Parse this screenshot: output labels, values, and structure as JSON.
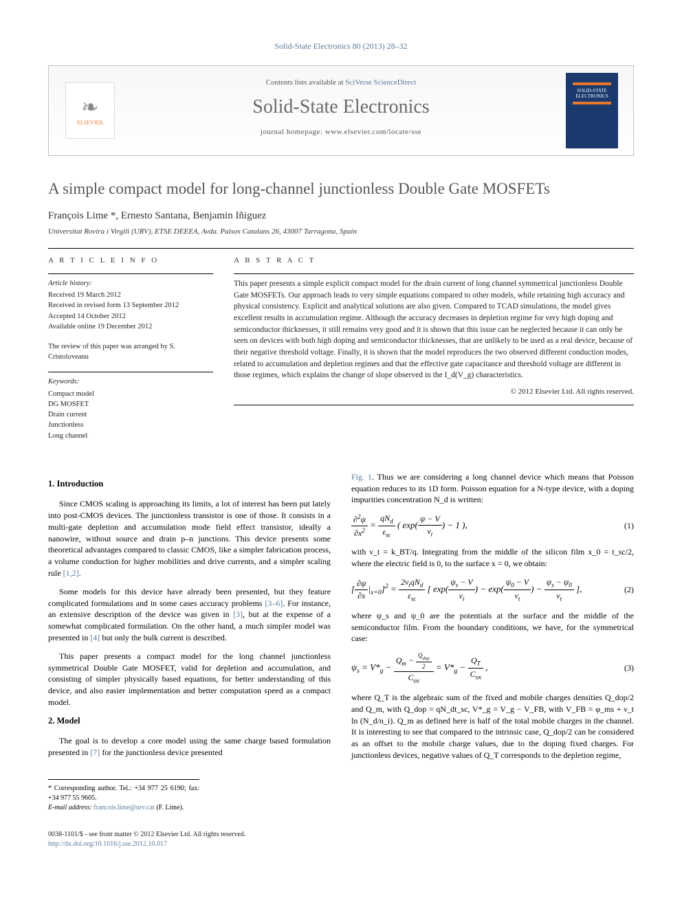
{
  "header_ref": "Solid-State Electronics 80 (2013) 28–32",
  "banner": {
    "contents_prefix": "Contents lists available at ",
    "contents_link": "SciVerse ScienceDirect",
    "journal": "Solid-State Electronics",
    "homepage_label": "journal homepage: ",
    "homepage_url": "www.elsevier.com/locate/sse",
    "publisher_name": "ELSEVIER",
    "cover_text": "SOLID-STATE ELECTRONICS"
  },
  "title": "A simple compact model for long-channel junctionless Double Gate MOSFETs",
  "authors": "François Lime *, Ernesto Santana, Benjamin Iñiguez",
  "affiliation": "Universitat Rovira i Virgili (URV), ETSE DEEEA, Avda. Països Catalans 26, 43007 Tarragona, Spain",
  "article_info": {
    "heading": "A R T I C L E   I N F O",
    "history_label": "Article history:",
    "history": [
      "Received 19 March 2012",
      "Received in revised form 13 September 2012",
      "Accepted 14 October 2012",
      "Available online 19 December 2012"
    ],
    "review_note": "The review of this paper was arranged by S. Cristoloveanu",
    "keywords_label": "Keywords:",
    "keywords": [
      "Compact model",
      "DG MOSFET",
      "Drain current",
      "Junctionless",
      "Long channel"
    ]
  },
  "abstract": {
    "heading": "A B S T R A C T",
    "text": "This paper presents a simple explicit compact model for the drain current of long channel symmetrical junctionless Double Gate MOSFETs. Our approach leads to very simple equations compared to other models, while retaining high accuracy and physical consistency. Explicit and analytical solutions are also given. Compared to TCAD simulations, the model gives excellent results in accumulation regime. Although the accuracy decreases in depletion regime for very high doping and semiconductor thicknesses, it still remains very good and it is shown that this issue can be neglected because it can only be seen on devices with both high doping and semiconductor thicknesses, that are unlikely to be used as a real device, because of their negative threshold voltage. Finally, it is shown that the model reproduces the two observed different conduction modes, related to accumulation and depletion regimes and that the effective gate capacitance and threshold voltage are different in those regimes, which explains the change of slope observed in the I_d(V_g) characteristics.",
    "copyright": "© 2012 Elsevier Ltd. All rights reserved."
  },
  "body": {
    "sec1_heading": "1. Introduction",
    "sec1_p1": "Since CMOS scaling is approaching its limits, a lot of interest has been put lately into post-CMOS devices. The junctionless transistor is one of those. It consists in a multi-gate depletion and accumulation mode field effect transistor, ideally a nanowire, without source and drain p–n junctions. This device presents some theoretical advantages compared to classic CMOS, like a simpler fabrication process, a volume conduction for higher mobilities and drive currents, and a simpler scaling rule ",
    "ref_1_2": "[1,2]",
    "sec1_p2a": "Some models for this device have already been presented, but they feature complicated formulations and in some cases accuracy problems ",
    "ref_3_6": "[3–6]",
    "sec1_p2b": ". For instance, an extensive description of the device was given in ",
    "ref_3": "[3]",
    "sec1_p2c": ", but at the expense of a somewhat complicated formulation. On the other hand, a much simpler model was presented in ",
    "ref_4": "[4]",
    "sec1_p2d": " but only the bulk current is described.",
    "sec1_p3": "This paper presents a compact model for the long channel junctionless symmetrical Double Gate MOSFET, valid for depletion and accumulation, and consisting of simpler physically based equations, for better understanding of this device, and also easier implementation and better computation speed as a compact model.",
    "sec2_heading": "2. Model",
    "sec2_p1a": "The goal is to develop a core model using the same charge based formulation presented in ",
    "ref_7": "[7]",
    "sec2_p1b": " for the junctionless device presented",
    "fig1_ref": "Fig. 1",
    "col2_intro": ". Thus we are considering a long channel device which means that Poisson equation reduces to its 1D form. Poisson equation for a N-type device, with a doping impurities concentration N_d is written:",
    "eq1_num": "(1)",
    "col2_after_eq1a": "with  ν_t = k_BT/q. Integrating from the middle of the silicon film x_0 = t_sc/2, where the electric field is 0, to the surface x = 0, we obtain:",
    "eq2_num": "(2)",
    "col2_after_eq2": "where ψ_s and ψ_0 are the potentials at the surface and the middle of the semiconductor film. From the boundary conditions, we have, for the symmetrical case:",
    "eq3_num": "(3)",
    "col2_after_eq3": "where Q_T is the algebraic sum of the fixed and mobile charges densities Q_dop/2 and Q_m, with Q_dop = qN_dt_sc, V*_g = V_g − V_FB, with V_FB = φ_ms + ν_t ln (N_d/n_i). Q_m as defined here is half of the total mobile charges in the channel. It is interesting to see that compared to the intrinsic case, Q_dop/2 can be considered as an offset to the mobile charge values, due to the doping fixed charges. For junctionless devices, negative values of Q_T corresponds to the depletion regime,"
  },
  "footer": {
    "corresponding": "* Corresponding author. Tel.: +34 977 25 6190; fax: +34 977 55 9605.",
    "email_label": "E-mail address:",
    "email": "francois.lime@urv.cat",
    "email_name": "(F. Lime).",
    "issn": "0038-1101/$ - see front matter © 2012 Elsevier Ltd. All rights reserved.",
    "doi": "http://dx.doi.org/10.1016/j.sse.2012.10.017"
  }
}
